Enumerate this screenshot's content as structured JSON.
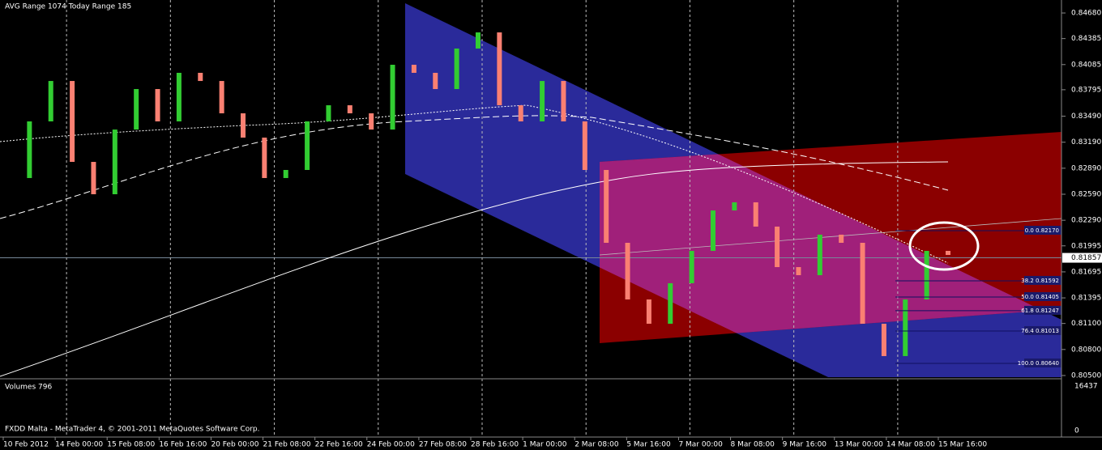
{
  "header": {
    "ranges": "AVG Range 1074   Today Range 185"
  },
  "price_axis": {
    "ylim": [
      0.80481,
      0.84811
    ],
    "ticks": [
      {
        "value": 0.8468,
        "label": "0.84680"
      },
      {
        "value": 0.84385,
        "label": "0.84385"
      },
      {
        "value": 0.84085,
        "label": "0.84085"
      },
      {
        "value": 0.83795,
        "label": "0.83795"
      },
      {
        "value": 0.8349,
        "label": "0.83490"
      },
      {
        "value": 0.8319,
        "label": "0.83190"
      },
      {
        "value": 0.8289,
        "label": "0.82890"
      },
      {
        "value": 0.8259,
        "label": "0.82590"
      },
      {
        "value": 0.8229,
        "label": "0.82290"
      },
      {
        "value": 0.81995,
        "label": "0.81995"
      },
      {
        "value": 0.81695,
        "label": "0.81695"
      },
      {
        "value": 0.81395,
        "label": "0.81395"
      },
      {
        "value": 0.811,
        "label": "0.81100"
      },
      {
        "value": 0.808,
        "label": "0.80800"
      },
      {
        "value": 0.805,
        "label": "0.80500"
      }
    ],
    "current_price": 0.81857
  },
  "candles": {
    "bull_color": "#32cd32",
    "bear_color": "#fa8072",
    "closes": [
      0.82777,
      0.8343,
      0.83896,
      0.82963,
      0.8259,
      0.83336,
      0.83803,
      0.8343,
      0.8399,
      0.83896,
      0.83523,
      0.83243,
      0.82777,
      0.8287,
      0.8343,
      0.83616,
      0.83523,
      0.83336,
      0.84083,
      0.8399,
      0.83803,
      0.8427,
      0.84456,
      0.83616,
      0.8343,
      0.83896,
      0.8343,
      0.8287,
      0.8203,
      0.81377,
      0.81097,
      0.81564,
      0.81937,
      0.82403,
      0.82497,
      0.82217,
      0.8175,
      0.81657,
      0.82124,
      0.8203,
      0.81097,
      0.80724,
      0.81377,
      0.81937,
      0.8189
    ]
  },
  "levels": [
    {
      "value": 0.8217,
      "label": "0.0 0.82170"
    },
    {
      "value": 0.81592,
      "label": "38.2 0.81592"
    },
    {
      "value": 0.81405,
      "label": "50.0 0.81405"
    },
    {
      "value": 0.81247,
      "label": "61.8 0.81247"
    },
    {
      "value": 0.81013,
      "label": "76.4 0.81013"
    },
    {
      "value": 0.8064,
      "label": "100.0 0.80640"
    }
  ],
  "volume_panel": {
    "label": "Volumes 796",
    "max_label": "16437",
    "min_label": "0"
  },
  "footer": "FXDD Malta - MetaTrader 4, © 2001-2011 MetaQuotes Software Corp.",
  "time_axis": [
    "10 Feb 2012",
    "14 Feb 00:00",
    "15 Feb 08:00",
    "16 Feb 16:00",
    "20 Feb 00:00",
    "21 Feb 08:00",
    "22 Feb 16:00",
    "24 Feb 00:00",
    "27 Feb 08:00",
    "28 Feb 16:00",
    "1 Mar 00:00",
    "2 Mar 08:00",
    "5 Mar 16:00",
    "7 Mar 00:00",
    "8 Mar 08:00",
    "9 Mar 16:00",
    "13 Mar 00:00",
    "14 Mar 08:00",
    "15 Mar 16:00"
  ]
}
